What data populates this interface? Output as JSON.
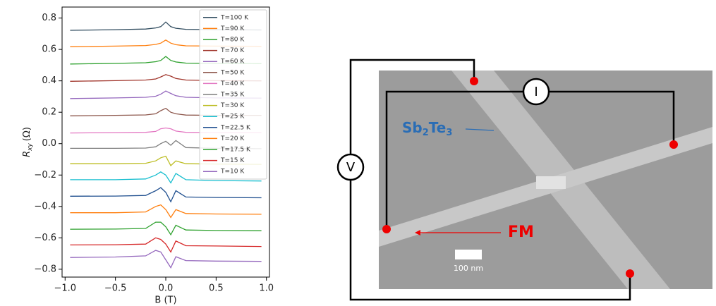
{
  "chart_data": {
    "type": "line",
    "x_label": "B (T)",
    "y_label": {
      "symbol": "R",
      "subscript": "xy",
      "unit": "(Ω)"
    },
    "x": [
      -0.95,
      -0.5,
      -0.2,
      -0.1,
      -0.05,
      0,
      0.05,
      0.1,
      0.2,
      0.5,
      0.95
    ],
    "xlim": [
      -1.03,
      1.03
    ],
    "xticks": [
      {
        "value": -1.0,
        "label": "−1.0"
      },
      {
        "value": -0.5,
        "label": "−0.5"
      },
      {
        "value": 0,
        "label": "0.0"
      },
      {
        "value": 0.5,
        "label": "0.5"
      },
      {
        "value": 1.0,
        "label": "1.0"
      }
    ],
    "ylim": [
      -0.85,
      0.87
    ],
    "yticks": [
      {
        "value": -0.8,
        "label": "−0.8"
      },
      {
        "value": -0.6,
        "label": "−0.6"
      },
      {
        "value": -0.4,
        "label": "−0.4"
      },
      {
        "value": -0.2,
        "label": "−0.2"
      },
      {
        "value": 0,
        "label": "0.0"
      },
      0.2,
      0.4,
      0.6,
      0.8
    ],
    "grid": false,
    "legend": "upper right",
    "series": [
      {
        "name": "T=100 K",
        "color": "#2f4b5e",
        "values": [
          0.722,
          0.726,
          0.73,
          0.737,
          0.745,
          0.775,
          0.745,
          0.735,
          0.728,
          0.726,
          0.724
        ]
      },
      {
        "name": "T=90 K",
        "color": "#ff7f0e",
        "values": [
          0.617,
          0.621,
          0.625,
          0.632,
          0.64,
          0.66,
          0.64,
          0.63,
          0.623,
          0.621,
          0.62
        ]
      },
      {
        "name": "T=80 K",
        "color": "#2ca02c",
        "values": [
          0.507,
          0.511,
          0.515,
          0.522,
          0.53,
          0.555,
          0.53,
          0.52,
          0.513,
          0.511,
          0.51
        ]
      },
      {
        "name": "T=70 K",
        "color": "#a0342a",
        "values": [
          0.397,
          0.401,
          0.405,
          0.412,
          0.425,
          0.44,
          0.43,
          0.415,
          0.405,
          0.401,
          0.4
        ]
      },
      {
        "name": "T=60 K",
        "color": "#9467bd",
        "values": [
          0.287,
          0.291,
          0.295,
          0.302,
          0.315,
          0.335,
          0.32,
          0.305,
          0.295,
          0.291,
          0.29
        ]
      },
      {
        "name": "T=50 K",
        "color": "#8c564b",
        "values": [
          0.177,
          0.18,
          0.183,
          0.19,
          0.21,
          0.225,
          0.2,
          0.19,
          0.182,
          0.18,
          0.18
        ]
      },
      {
        "name": "T=40 K",
        "color": "#e377c2",
        "values": [
          0.068,
          0.07,
          0.072,
          0.078,
          0.095,
          0.1,
          0.095,
          0.08,
          0.072,
          0.07,
          0.07
        ]
      },
      {
        "name": "T=35 K",
        "color": "#7f7f7f",
        "values": [
          -0.03,
          -0.03,
          -0.028,
          -0.02,
          0.0,
          0.015,
          -0.01,
          0.02,
          -0.025,
          -0.03,
          -0.032
        ]
      },
      {
        "name": "T=30 K",
        "color": "#bcbd22",
        "values": [
          -0.128,
          -0.128,
          -0.125,
          -0.11,
          -0.09,
          -0.08,
          -0.14,
          -0.11,
          -0.128,
          -0.13,
          -0.132
        ]
      },
      {
        "name": "T=25 K",
        "color": "#17becf",
        "values": [
          -0.23,
          -0.23,
          -0.225,
          -0.2,
          -0.18,
          -0.2,
          -0.25,
          -0.19,
          -0.23,
          -0.235,
          -0.238
        ]
      },
      {
        "name": "T=22.5 K",
        "color": "#1f4f8f",
        "values": [
          -0.335,
          -0.334,
          -0.33,
          -0.3,
          -0.28,
          -0.31,
          -0.37,
          -0.3,
          -0.34,
          -0.343,
          -0.345
        ]
      },
      {
        "name": "T=20 K",
        "color": "#ff7f0e",
        "values": [
          -0.44,
          -0.44,
          -0.435,
          -0.4,
          -0.39,
          -0.42,
          -0.47,
          -0.42,
          -0.445,
          -0.448,
          -0.45
        ]
      },
      {
        "name": "T=17.5 K",
        "color": "#2ca02c",
        "values": [
          -0.545,
          -0.544,
          -0.54,
          -0.5,
          -0.5,
          -0.53,
          -0.58,
          -0.52,
          -0.55,
          -0.553,
          -0.555
        ]
      },
      {
        "name": "T=15 K",
        "color": "#d62728",
        "values": [
          -0.645,
          -0.644,
          -0.64,
          -0.6,
          -0.61,
          -0.64,
          -0.69,
          -0.62,
          -0.65,
          -0.652,
          -0.655
        ]
      },
      {
        "name": "T=10 K",
        "color": "#9467bd",
        "values": [
          -0.725,
          -0.722,
          -0.715,
          -0.68,
          -0.69,
          -0.74,
          -0.79,
          -0.72,
          -0.745,
          -0.748,
          -0.75
        ]
      }
    ]
  },
  "diagram": {
    "current_label": "I",
    "voltage_label": "V",
    "material_label": [
      "Sb",
      "2",
      "Te",
      "3"
    ],
    "fm_label": "FM",
    "scale_label": "100 nm"
  }
}
